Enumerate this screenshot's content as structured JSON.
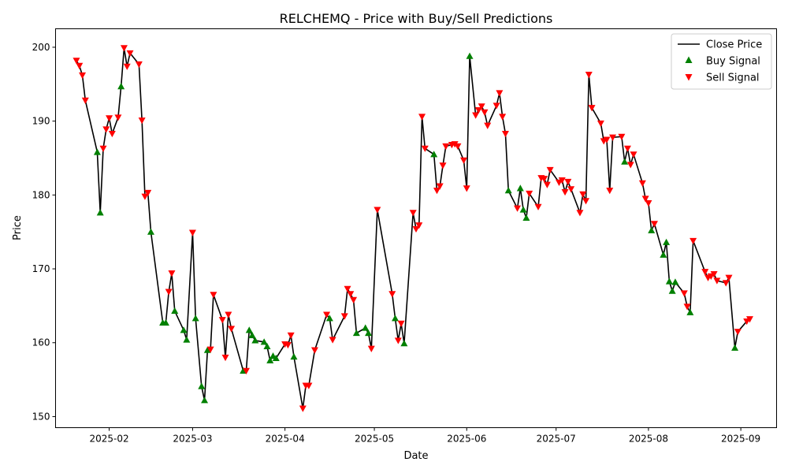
{
  "chart_data": {
    "type": "line",
    "title": "RELCHEMQ - Price with Buy/Sell Predictions",
    "xlabel": "Date",
    "ylabel": "Price",
    "ylim": [
      148.5,
      202.5
    ],
    "xlim": [
      "2025-01-14",
      "2025-09-13"
    ],
    "grid": false,
    "legend_position": "top-right",
    "x_ticks": [
      "2025-02",
      "2025-03",
      "2025-04",
      "2025-05",
      "2025-06",
      "2025-07",
      "2025-08",
      "2025-09"
    ],
    "y_ticks": [
      150,
      160,
      170,
      180,
      190,
      200
    ],
    "legend": [
      {
        "label": "Close Price",
        "kind": "line",
        "color": "#000000"
      },
      {
        "label": "Buy Signal",
        "kind": "triangle-up",
        "color": "#008000"
      },
      {
        "label": "Sell Signal",
        "kind": "triangle-down",
        "color": "#ff0000"
      }
    ],
    "series": [
      {
        "name": "Close Price",
        "color": "#000000",
        "points": [
          [
            "2025-01-21",
            198.2
          ],
          [
            "2025-01-22",
            197.5
          ],
          [
            "2025-01-23",
            196.2
          ],
          [
            "2025-01-24",
            192.8
          ],
          [
            "2025-01-28",
            185.8
          ],
          [
            "2025-01-29",
            177.6
          ],
          [
            "2025-01-30",
            186.3
          ],
          [
            "2025-01-31",
            188.9
          ],
          [
            "2025-02-01",
            190.4
          ],
          [
            "2025-02-02",
            188.3
          ],
          [
            "2025-02-04",
            190.5
          ],
          [
            "2025-02-05",
            194.7
          ],
          [
            "2025-02-06",
            199.9
          ],
          [
            "2025-02-07",
            197.4
          ],
          [
            "2025-02-08",
            199.2
          ],
          [
            "2025-02-11",
            197.7
          ],
          [
            "2025-02-12",
            190.1
          ],
          [
            "2025-02-13",
            179.8
          ],
          [
            "2025-02-14",
            180.3
          ],
          [
            "2025-02-15",
            175.0
          ],
          [
            "2025-02-19",
            162.7
          ],
          [
            "2025-02-20",
            162.7
          ],
          [
            "2025-02-21",
            166.9
          ],
          [
            "2025-02-22",
            169.4
          ],
          [
            "2025-02-23",
            164.3
          ],
          [
            "2025-02-26",
            161.7
          ],
          [
            "2025-02-27",
            160.4
          ],
          [
            "2025-03-01",
            174.9
          ],
          [
            "2025-03-02",
            163.3
          ],
          [
            "2025-03-04",
            154.1
          ],
          [
            "2025-03-05",
            152.2
          ],
          [
            "2025-03-06",
            159.0
          ],
          [
            "2025-03-07",
            159.1
          ],
          [
            "2025-03-08",
            166.5
          ],
          [
            "2025-03-11",
            163.1
          ],
          [
            "2025-03-12",
            158.0
          ],
          [
            "2025-03-13",
            163.8
          ],
          [
            "2025-03-14",
            161.9
          ],
          [
            "2025-03-18",
            156.2
          ],
          [
            "2025-03-19",
            156.2
          ],
          [
            "2025-03-20",
            161.7
          ],
          [
            "2025-03-21",
            161.0
          ],
          [
            "2025-03-22",
            160.3
          ],
          [
            "2025-03-25",
            160.1
          ],
          [
            "2025-03-26",
            159.5
          ],
          [
            "2025-03-27",
            157.6
          ],
          [
            "2025-03-28",
            158.2
          ],
          [
            "2025-03-29",
            157.9
          ],
          [
            "2025-04-01",
            159.8
          ],
          [
            "2025-04-02",
            159.7
          ],
          [
            "2025-04-03",
            161.0
          ],
          [
            "2025-04-04",
            158.1
          ],
          [
            "2025-04-07",
            151.1
          ],
          [
            "2025-04-08",
            154.2
          ],
          [
            "2025-04-09",
            154.2
          ],
          [
            "2025-04-11",
            159.0
          ],
          [
            "2025-04-15",
            163.8
          ],
          [
            "2025-04-16",
            163.3
          ],
          [
            "2025-04-17",
            160.4
          ],
          [
            "2025-04-21",
            163.6
          ],
          [
            "2025-04-22",
            167.3
          ],
          [
            "2025-04-23",
            166.6
          ],
          [
            "2025-04-24",
            165.8
          ],
          [
            "2025-04-25",
            161.3
          ],
          [
            "2025-04-28",
            162.0
          ],
          [
            "2025-04-29",
            161.3
          ],
          [
            "2025-04-30",
            159.2
          ],
          [
            "2025-05-02",
            178.0
          ],
          [
            "2025-05-07",
            166.6
          ],
          [
            "2025-05-08",
            163.3
          ],
          [
            "2025-05-09",
            160.3
          ],
          [
            "2025-05-10",
            162.6
          ],
          [
            "2025-05-11",
            159.9
          ],
          [
            "2025-05-14",
            177.6
          ],
          [
            "2025-05-15",
            175.4
          ],
          [
            "2025-05-16",
            175.9
          ],
          [
            "2025-05-17",
            190.6
          ],
          [
            "2025-05-18",
            186.3
          ],
          [
            "2025-05-21",
            185.5
          ],
          [
            "2025-05-22",
            180.6
          ],
          [
            "2025-05-23",
            181.2
          ],
          [
            "2025-05-24",
            184.0
          ],
          [
            "2025-05-25",
            186.6
          ],
          [
            "2025-05-27",
            186.8
          ],
          [
            "2025-05-28",
            186.9
          ],
          [
            "2025-05-29",
            186.6
          ],
          [
            "2025-05-31",
            184.7
          ],
          [
            "2025-06-01",
            180.9
          ],
          [
            "2025-06-02",
            198.8
          ],
          [
            "2025-06-04",
            190.8
          ],
          [
            "2025-06-05",
            191.5
          ],
          [
            "2025-06-06",
            192.0
          ],
          [
            "2025-06-07",
            191.2
          ],
          [
            "2025-06-08",
            189.4
          ],
          [
            "2025-06-11",
            192.1
          ],
          [
            "2025-06-12",
            193.8
          ],
          [
            "2025-06-13",
            190.6
          ],
          [
            "2025-06-14",
            188.3
          ],
          [
            "2025-06-15",
            180.6
          ],
          [
            "2025-06-18",
            178.2
          ],
          [
            "2025-06-19",
            180.9
          ],
          [
            "2025-06-20",
            178.0
          ],
          [
            "2025-06-21",
            176.9
          ],
          [
            "2025-06-22",
            180.2
          ],
          [
            "2025-06-25",
            178.4
          ],
          [
            "2025-06-26",
            182.3
          ],
          [
            "2025-06-27",
            182.2
          ],
          [
            "2025-06-28",
            181.4
          ],
          [
            "2025-06-29",
            183.4
          ],
          [
            "2025-07-02",
            181.7
          ],
          [
            "2025-07-03",
            182.0
          ],
          [
            "2025-07-04",
            180.4
          ],
          [
            "2025-07-05",
            181.8
          ],
          [
            "2025-07-06",
            180.8
          ],
          [
            "2025-07-09",
            177.6
          ],
          [
            "2025-07-10",
            180.1
          ],
          [
            "2025-07-11",
            179.2
          ],
          [
            "2025-07-12",
            196.3
          ],
          [
            "2025-07-13",
            191.8
          ],
          [
            "2025-07-16",
            189.7
          ],
          [
            "2025-07-17",
            187.3
          ],
          [
            "2025-07-18",
            187.5
          ],
          [
            "2025-07-19",
            180.6
          ],
          [
            "2025-07-20",
            187.8
          ],
          [
            "2025-07-23",
            187.9
          ],
          [
            "2025-07-24",
            184.5
          ],
          [
            "2025-07-25",
            186.3
          ],
          [
            "2025-07-26",
            184.1
          ],
          [
            "2025-07-27",
            185.5
          ],
          [
            "2025-07-30",
            181.6
          ],
          [
            "2025-07-31",
            179.5
          ],
          [
            "2025-08-01",
            178.9
          ],
          [
            "2025-08-02",
            175.2
          ],
          [
            "2025-08-03",
            176.1
          ],
          [
            "2025-08-06",
            171.9
          ],
          [
            "2025-08-07",
            173.6
          ],
          [
            "2025-08-08",
            168.3
          ],
          [
            "2025-08-09",
            167.0
          ],
          [
            "2025-08-10",
            168.2
          ],
          [
            "2025-08-13",
            166.7
          ],
          [
            "2025-08-14",
            164.9
          ],
          [
            "2025-08-15",
            164.1
          ],
          [
            "2025-08-16",
            173.8
          ],
          [
            "2025-08-20",
            169.6
          ],
          [
            "2025-08-21",
            168.8
          ],
          [
            "2025-08-22",
            169.0
          ],
          [
            "2025-08-23",
            169.3
          ],
          [
            "2025-08-24",
            168.4
          ],
          [
            "2025-08-27",
            168.1
          ],
          [
            "2025-08-28",
            168.8
          ],
          [
            "2025-08-30",
            159.3
          ],
          [
            "2025-08-31",
            161.5
          ],
          [
            "2025-09-03",
            162.9
          ],
          [
            "2025-09-04",
            163.2
          ]
        ]
      }
    ],
    "buy_signals": [
      [
        "2025-01-28",
        185.8
      ],
      [
        "2025-01-29",
        177.6
      ],
      [
        "2025-02-05",
        194.7
      ],
      [
        "2025-02-15",
        175.0
      ],
      [
        "2025-02-19",
        162.7
      ],
      [
        "2025-02-20",
        162.7
      ],
      [
        "2025-02-23",
        164.3
      ],
      [
        "2025-02-26",
        161.7
      ],
      [
        "2025-02-27",
        160.4
      ],
      [
        "2025-03-02",
        163.3
      ],
      [
        "2025-03-04",
        154.1
      ],
      [
        "2025-03-05",
        152.2
      ],
      [
        "2025-03-06",
        159.0
      ],
      [
        "2025-03-18",
        156.2
      ],
      [
        "2025-03-20",
        161.7
      ],
      [
        "2025-03-21",
        161.0
      ],
      [
        "2025-03-22",
        160.3
      ],
      [
        "2025-03-25",
        160.1
      ],
      [
        "2025-03-26",
        159.5
      ],
      [
        "2025-03-27",
        157.6
      ],
      [
        "2025-03-28",
        158.2
      ],
      [
        "2025-03-29",
        157.9
      ],
      [
        "2025-04-04",
        158.1
      ],
      [
        "2025-04-16",
        163.3
      ],
      [
        "2025-04-25",
        161.3
      ],
      [
        "2025-04-28",
        162.0
      ],
      [
        "2025-04-29",
        161.3
      ],
      [
        "2025-05-08",
        163.3
      ],
      [
        "2025-05-11",
        159.9
      ],
      [
        "2025-05-21",
        185.5
      ],
      [
        "2025-06-02",
        198.8
      ],
      [
        "2025-06-15",
        180.6
      ],
      [
        "2025-06-19",
        180.9
      ],
      [
        "2025-06-20",
        178.0
      ],
      [
        "2025-06-21",
        176.9
      ],
      [
        "2025-07-24",
        184.5
      ],
      [
        "2025-08-02",
        175.2
      ],
      [
        "2025-08-06",
        171.9
      ],
      [
        "2025-08-07",
        173.6
      ],
      [
        "2025-08-08",
        168.3
      ],
      [
        "2025-08-09",
        167.0
      ],
      [
        "2025-08-10",
        168.2
      ],
      [
        "2025-08-15",
        164.1
      ],
      [
        "2025-08-30",
        159.3
      ]
    ],
    "sell_signals": [
      [
        "2025-01-21",
        198.2
      ],
      [
        "2025-01-22",
        197.5
      ],
      [
        "2025-01-23",
        196.2
      ],
      [
        "2025-01-24",
        192.8
      ],
      [
        "2025-01-30",
        186.3
      ],
      [
        "2025-01-31",
        188.9
      ],
      [
        "2025-02-01",
        190.4
      ],
      [
        "2025-02-02",
        188.3
      ],
      [
        "2025-02-04",
        190.5
      ],
      [
        "2025-02-06",
        199.9
      ],
      [
        "2025-02-07",
        197.4
      ],
      [
        "2025-02-08",
        199.2
      ],
      [
        "2025-02-11",
        197.7
      ],
      [
        "2025-02-12",
        190.1
      ],
      [
        "2025-02-13",
        179.8
      ],
      [
        "2025-02-14",
        180.3
      ],
      [
        "2025-02-21",
        166.9
      ],
      [
        "2025-02-22",
        169.4
      ],
      [
        "2025-03-01",
        174.9
      ],
      [
        "2025-03-07",
        159.1
      ],
      [
        "2025-03-08",
        166.5
      ],
      [
        "2025-03-11",
        163.1
      ],
      [
        "2025-03-12",
        158.0
      ],
      [
        "2025-03-13",
        163.8
      ],
      [
        "2025-03-14",
        161.9
      ],
      [
        "2025-03-19",
        156.2
      ],
      [
        "2025-04-01",
        159.8
      ],
      [
        "2025-04-02",
        159.7
      ],
      [
        "2025-04-03",
        161.0
      ],
      [
        "2025-04-07",
        151.1
      ],
      [
        "2025-04-08",
        154.2
      ],
      [
        "2025-04-09",
        154.2
      ],
      [
        "2025-04-11",
        159.0
      ],
      [
        "2025-04-15",
        163.8
      ],
      [
        "2025-04-17",
        160.4
      ],
      [
        "2025-04-21",
        163.6
      ],
      [
        "2025-04-22",
        167.3
      ],
      [
        "2025-04-23",
        166.6
      ],
      [
        "2025-04-24",
        165.8
      ],
      [
        "2025-04-30",
        159.2
      ],
      [
        "2025-05-02",
        178.0
      ],
      [
        "2025-05-07",
        166.6
      ],
      [
        "2025-05-09",
        160.3
      ],
      [
        "2025-05-10",
        162.6
      ],
      [
        "2025-05-14",
        177.6
      ],
      [
        "2025-05-15",
        175.4
      ],
      [
        "2025-05-16",
        175.9
      ],
      [
        "2025-05-17",
        190.6
      ],
      [
        "2025-05-18",
        186.3
      ],
      [
        "2025-05-22",
        180.6
      ],
      [
        "2025-05-23",
        181.2
      ],
      [
        "2025-05-24",
        184.0
      ],
      [
        "2025-05-25",
        186.6
      ],
      [
        "2025-05-27",
        186.8
      ],
      [
        "2025-05-28",
        186.9
      ],
      [
        "2025-05-29",
        186.6
      ],
      [
        "2025-05-31",
        184.7
      ],
      [
        "2025-06-01",
        180.9
      ],
      [
        "2025-06-04",
        190.8
      ],
      [
        "2025-06-05",
        191.5
      ],
      [
        "2025-06-06",
        192.0
      ],
      [
        "2025-06-07",
        191.2
      ],
      [
        "2025-06-08",
        189.4
      ],
      [
        "2025-06-11",
        192.1
      ],
      [
        "2025-06-12",
        193.8
      ],
      [
        "2025-06-13",
        190.6
      ],
      [
        "2025-06-14",
        188.3
      ],
      [
        "2025-06-18",
        178.2
      ],
      [
        "2025-06-22",
        180.2
      ],
      [
        "2025-06-25",
        178.4
      ],
      [
        "2025-06-26",
        182.3
      ],
      [
        "2025-06-27",
        182.2
      ],
      [
        "2025-06-28",
        181.4
      ],
      [
        "2025-06-29",
        183.4
      ],
      [
        "2025-07-02",
        181.7
      ],
      [
        "2025-07-03",
        182.0
      ],
      [
        "2025-07-04",
        180.4
      ],
      [
        "2025-07-05",
        181.8
      ],
      [
        "2025-07-06",
        180.8
      ],
      [
        "2025-07-09",
        177.6
      ],
      [
        "2025-07-10",
        180.1
      ],
      [
        "2025-07-11",
        179.2
      ],
      [
        "2025-07-12",
        196.3
      ],
      [
        "2025-07-13",
        191.8
      ],
      [
        "2025-07-16",
        189.7
      ],
      [
        "2025-07-17",
        187.3
      ],
      [
        "2025-07-18",
        187.5
      ],
      [
        "2025-07-19",
        180.6
      ],
      [
        "2025-07-20",
        187.8
      ],
      [
        "2025-07-23",
        187.9
      ],
      [
        "2025-07-25",
        186.3
      ],
      [
        "2025-07-26",
        184.1
      ],
      [
        "2025-07-27",
        185.5
      ],
      [
        "2025-07-30",
        181.6
      ],
      [
        "2025-07-31",
        179.5
      ],
      [
        "2025-08-01",
        178.9
      ],
      [
        "2025-08-03",
        176.1
      ],
      [
        "2025-08-13",
        166.7
      ],
      [
        "2025-08-14",
        164.9
      ],
      [
        "2025-08-16",
        173.8
      ],
      [
        "2025-08-20",
        169.6
      ],
      [
        "2025-08-21",
        168.8
      ],
      [
        "2025-08-22",
        169.0
      ],
      [
        "2025-08-23",
        169.3
      ],
      [
        "2025-08-24",
        168.4
      ],
      [
        "2025-08-27",
        168.1
      ],
      [
        "2025-08-28",
        168.8
      ],
      [
        "2025-08-31",
        161.5
      ],
      [
        "2025-09-03",
        162.9
      ],
      [
        "2025-09-04",
        163.2
      ]
    ]
  }
}
